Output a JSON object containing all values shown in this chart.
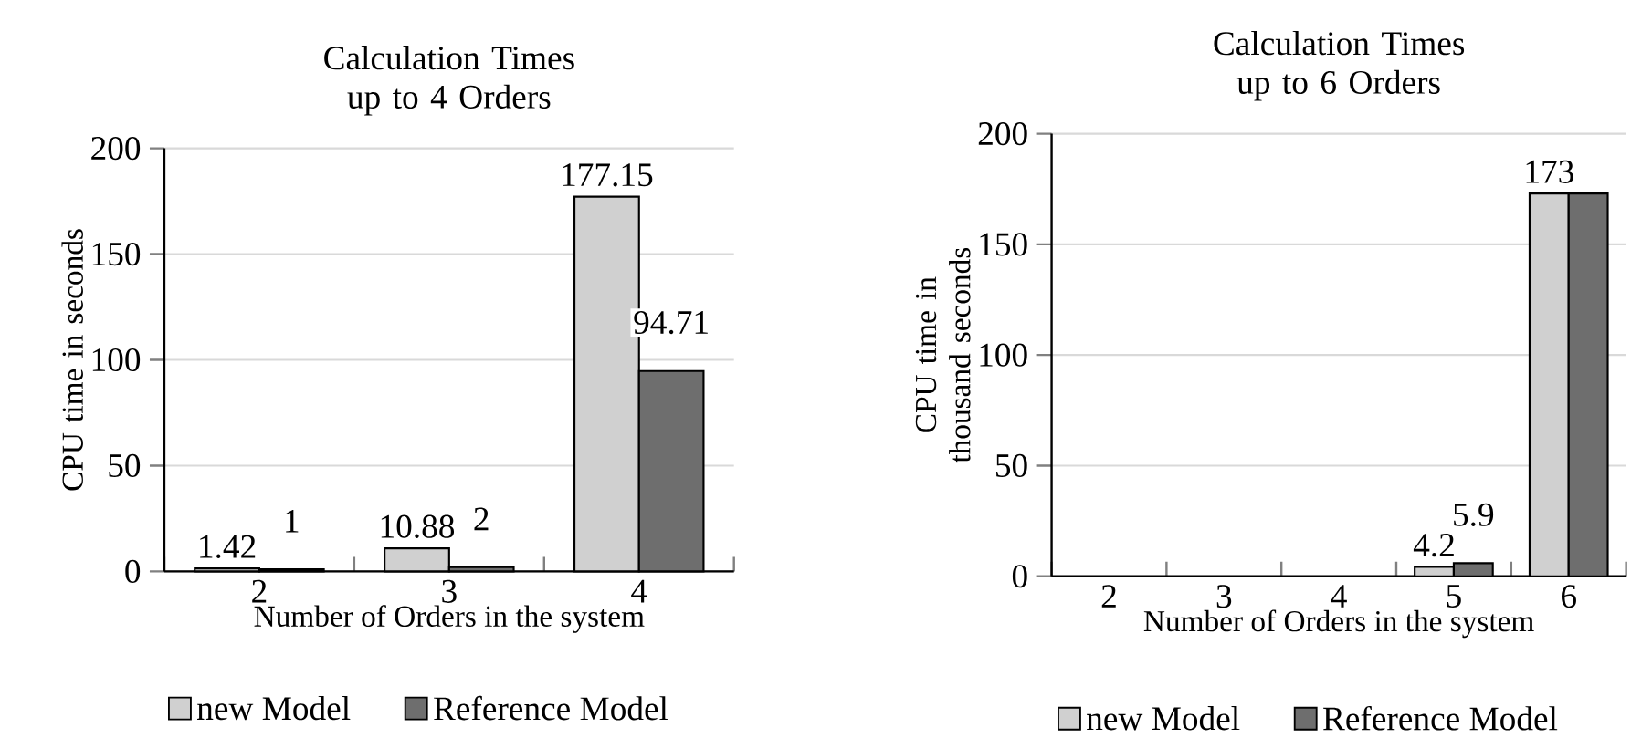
{
  "chart_data": [
    {
      "type": "bar",
      "title": "Calculation Times up to 4 Orders",
      "xlabel": "Number of Orders in the system",
      "ylabel": "CPU time in seconds",
      "categories": [
        "2",
        "3",
        "4"
      ],
      "series": [
        {
          "name": "new Model",
          "color": "#d0d0d0",
          "values": [
            1.42,
            10.88,
            177.15
          ]
        },
        {
          "name": "Reference Model",
          "color": "#6e6e6e",
          "values": [
            1,
            2,
            94.71
          ]
        }
      ],
      "ylim": [
        0,
        200
      ],
      "yticks": [
        0,
        50,
        100,
        150,
        200
      ],
      "grid": "y",
      "legend": "bottom",
      "data_labels": true
    },
    {
      "type": "bar",
      "title": "Calculation Times up to 6 Orders",
      "xlabel": "Number of Orders in the system",
      "ylabel": "CPU time in thousand seconds",
      "categories": [
        "2",
        "3",
        "4",
        "5",
        "6"
      ],
      "series": [
        {
          "name": "new Model",
          "color": "#d0d0d0",
          "values": [
            null,
            null,
            null,
            4.2,
            173
          ],
          "value_labels": [
            null,
            null,
            null,
            "4.2",
            "173"
          ]
        },
        {
          "name": "Reference Model",
          "color": "#6e6e6e",
          "values": [
            null,
            null,
            null,
            5.9,
            173
          ],
          "value_labels": [
            null,
            null,
            null,
            "5.9",
            null
          ]
        }
      ],
      "ylim": [
        0,
        200
      ],
      "yticks": [
        0,
        50,
        100,
        150,
        200
      ],
      "grid": "y",
      "legend": "bottom"
    }
  ]
}
